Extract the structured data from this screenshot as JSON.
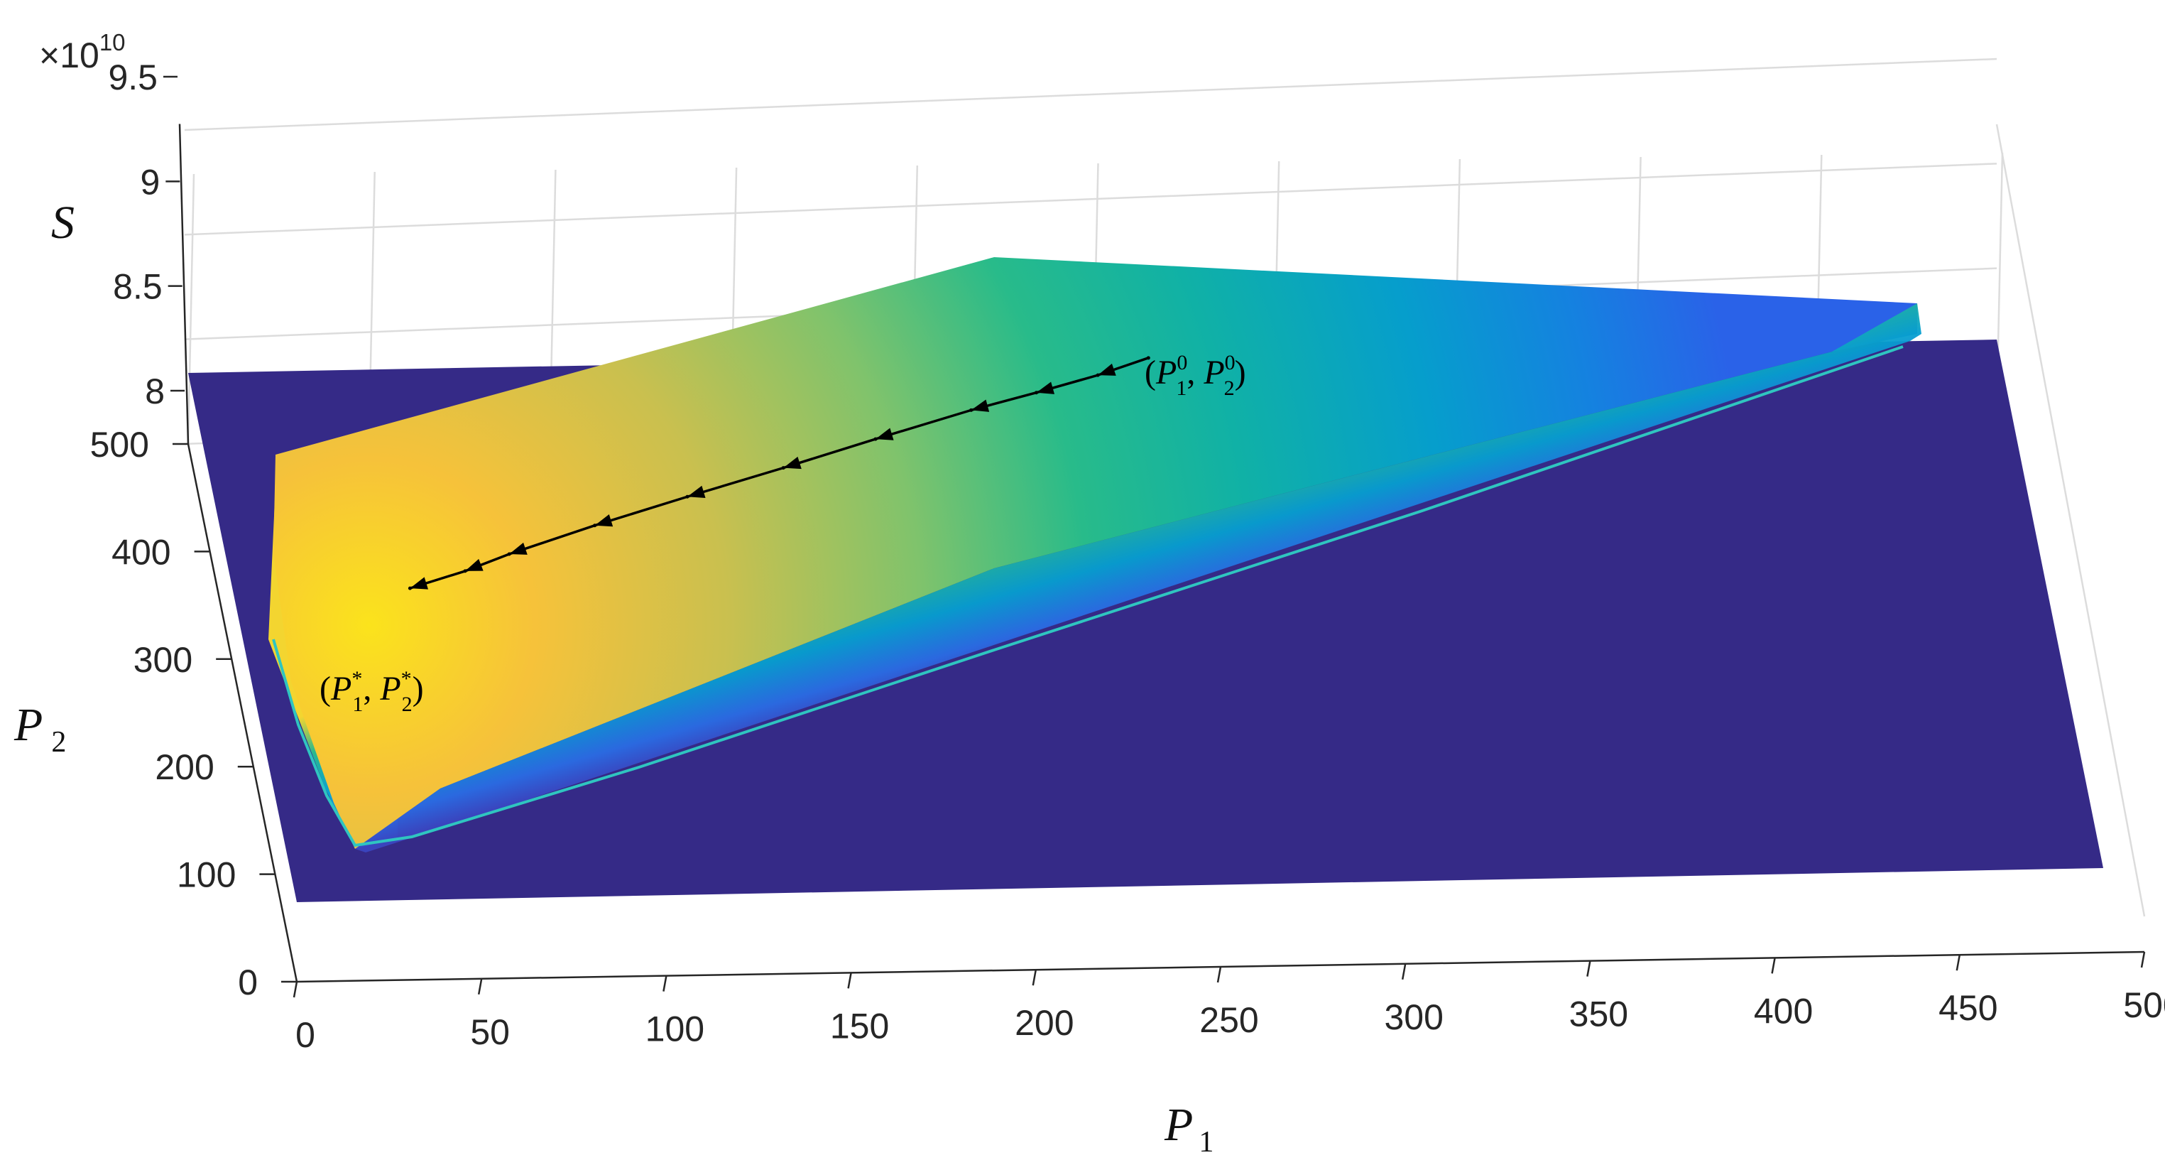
{
  "chart_data": {
    "type": "surface",
    "title": "",
    "z_scale_label": "×10",
    "z_scale_exponent": "10",
    "x_axis": {
      "label": "P",
      "subscript": "1",
      "ticks": [
        "0",
        "50",
        "100",
        "150",
        "200",
        "250",
        "300",
        "350",
        "400",
        "450",
        "500"
      ],
      "range": [
        0,
        500
      ]
    },
    "y_axis": {
      "label": "P",
      "subscript": "2",
      "ticks": [
        "0",
        "100",
        "200",
        "300",
        "400",
        "500"
      ],
      "range": [
        0,
        500
      ]
    },
    "z_axis": {
      "label": "S",
      "ticks": [
        "8",
        "8.5",
        "9",
        "9.5"
      ],
      "range": [
        8,
        9.5
      ]
    },
    "grid": true,
    "colormap": "parula",
    "path_points": [
      {
        "p1": 230,
        "p2": 470
      },
      {
        "p1": 215,
        "p2": 455
      },
      {
        "p1": 197,
        "p2": 440
      },
      {
        "p1": 178,
        "p2": 425
      },
      {
        "p1": 150,
        "p2": 400
      },
      {
        "p1": 123,
        "p2": 375
      },
      {
        "p1": 95,
        "p2": 350
      },
      {
        "p1": 68,
        "p2": 325
      },
      {
        "p1": 43,
        "p2": 300
      },
      {
        "p1": 30,
        "p2": 285
      },
      {
        "p1": 14,
        "p2": 270
      }
    ],
    "annotations": {
      "start": {
        "open": "(",
        "p": "P",
        "sub1": "1",
        "sup1": "0",
        "sep": ", ",
        "sub2": "2",
        "sup2": "0",
        "close": ")"
      },
      "end": {
        "open": "(",
        "p": "P",
        "sub1": "1",
        "sup1": "*",
        "sep": ", ",
        "sub2": "2",
        "sup2": "*",
        "close": ")"
      }
    }
  }
}
